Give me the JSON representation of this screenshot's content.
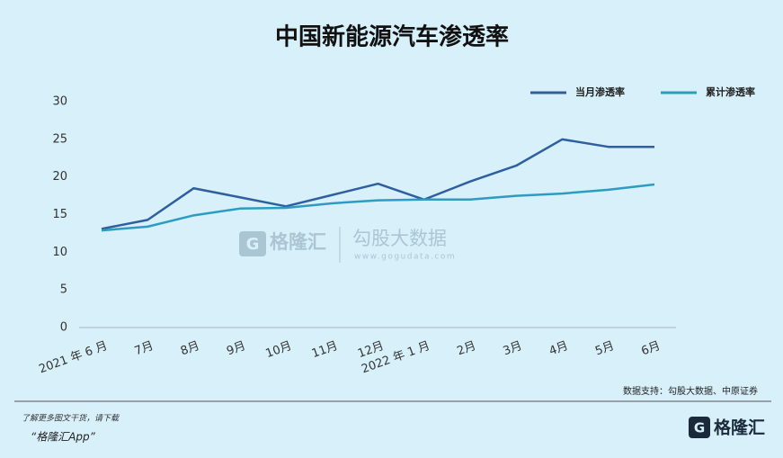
{
  "chart_data": {
    "type": "line",
    "title": "中国新能源汽车渗透率",
    "categories": [
      "2021 年 6 月",
      "7月",
      "8月",
      "9月",
      "10月",
      "11月",
      "12月",
      "2022 年 1 月",
      "2月",
      "3月",
      "4月",
      "5月",
      "6月"
    ],
    "series": [
      {
        "name": "当月渗透率",
        "color": "#2f5f9e",
        "values": [
          13.1,
          14.3,
          18.5,
          17.3,
          16.1,
          17.6,
          19.1,
          17.0,
          19.4,
          21.5,
          25.0,
          24.0,
          24.0
        ]
      },
      {
        "name": "累计渗透率",
        "color": "#2e9bc2",
        "values": [
          12.9,
          13.4,
          14.9,
          15.8,
          15.9,
          16.5,
          16.9,
          17.0,
          17.0,
          17.5,
          17.8,
          18.3,
          19.0
        ]
      }
    ],
    "ylim": [
      0,
      30
    ],
    "yticks": [
      0,
      5,
      10,
      15,
      20,
      25,
      30
    ],
    "grid": false,
    "legend": "top-right",
    "source": "数据支持：勾股大数据、中原证券"
  },
  "watermark": {
    "brand": "格隆汇",
    "name": "勾股大数据",
    "url": "www.gogudata.com"
  },
  "footer": {
    "line1": "了解更多图文干货，请下载",
    "line2": "“格隆汇App”",
    "logo": "格隆汇"
  }
}
